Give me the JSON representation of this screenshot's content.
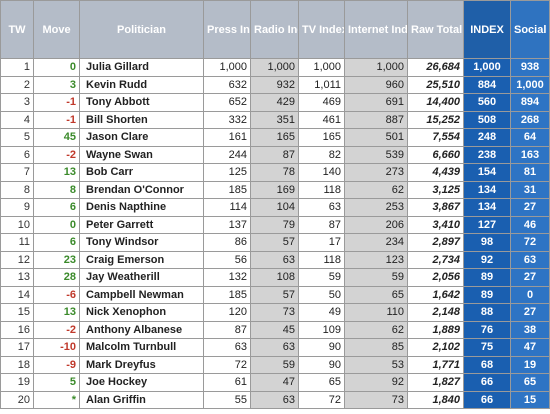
{
  "table": {
    "headers": {
      "tw": "TW",
      "move": "Move",
      "politician": "Politician",
      "press": "Press Index",
      "radio": "Radio Index",
      "tv": "TV Index",
      "internet": "Internet Index",
      "raw": "Raw Total",
      "index": "INDEX",
      "social": "Social Media Index"
    },
    "rows": [
      {
        "tw": "1",
        "move": "0",
        "politician": "Julia Gillard",
        "press": "1,000",
        "radio": "1,000",
        "tv": "1,000",
        "internet": "1,000",
        "raw": "26,684",
        "index": "1,000",
        "social": "938"
      },
      {
        "tw": "2",
        "move": "3",
        "politician": "Kevin Rudd",
        "press": "632",
        "radio": "932",
        "tv": "1,011",
        "internet": "960",
        "raw": "25,510",
        "index": "884",
        "social": "1,000"
      },
      {
        "tw": "3",
        "move": "-1",
        "politician": "Tony Abbott",
        "press": "652",
        "radio": "429",
        "tv": "469",
        "internet": "691",
        "raw": "14,400",
        "index": "560",
        "social": "894"
      },
      {
        "tw": "4",
        "move": "-1",
        "politician": "Bill Shorten",
        "press": "332",
        "radio": "351",
        "tv": "461",
        "internet": "887",
        "raw": "15,252",
        "index": "508",
        "social": "268"
      },
      {
        "tw": "5",
        "move": "45",
        "politician": "Jason Clare",
        "press": "161",
        "radio": "165",
        "tv": "165",
        "internet": "501",
        "raw": "7,554",
        "index": "248",
        "social": "64"
      },
      {
        "tw": "6",
        "move": "-2",
        "politician": "Wayne Swan",
        "press": "244",
        "radio": "87",
        "tv": "82",
        "internet": "539",
        "raw": "6,660",
        "index": "238",
        "social": "163"
      },
      {
        "tw": "7",
        "move": "13",
        "politician": "Bob Carr",
        "press": "125",
        "radio": "78",
        "tv": "140",
        "internet": "273",
        "raw": "4,439",
        "index": "154",
        "social": "81"
      },
      {
        "tw": "8",
        "move": "8",
        "politician": "Brendan O'Connor",
        "press": "185",
        "radio": "169",
        "tv": "118",
        "internet": "62",
        "raw": "3,125",
        "index": "134",
        "social": "31"
      },
      {
        "tw": "9",
        "move": "6",
        "politician": "Denis Napthine",
        "press": "114",
        "radio": "104",
        "tv": "63",
        "internet": "253",
        "raw": "3,867",
        "index": "134",
        "social": "27"
      },
      {
        "tw": "10",
        "move": "0",
        "politician": "Peter Garrett",
        "press": "137",
        "radio": "79",
        "tv": "87",
        "internet": "206",
        "raw": "3,410",
        "index": "127",
        "social": "46"
      },
      {
        "tw": "11",
        "move": "6",
        "politician": "Tony Windsor",
        "press": "86",
        "radio": "57",
        "tv": "17",
        "internet": "234",
        "raw": "2,897",
        "index": "98",
        "social": "72"
      },
      {
        "tw": "12",
        "move": "23",
        "politician": "Craig Emerson",
        "press": "56",
        "radio": "63",
        "tv": "118",
        "internet": "123",
        "raw": "2,734",
        "index": "92",
        "social": "63"
      },
      {
        "tw": "13",
        "move": "28",
        "politician": "Jay Weatherill",
        "press": "132",
        "radio": "108",
        "tv": "59",
        "internet": "59",
        "raw": "2,056",
        "index": "89",
        "social": "27"
      },
      {
        "tw": "14",
        "move": "-6",
        "politician": "Campbell Newman",
        "press": "185",
        "radio": "57",
        "tv": "50",
        "internet": "65",
        "raw": "1,642",
        "index": "89",
        "social": "0"
      },
      {
        "tw": "15",
        "move": "13",
        "politician": "Nick Xenophon",
        "press": "120",
        "radio": "73",
        "tv": "49",
        "internet": "110",
        "raw": "2,148",
        "index": "88",
        "social": "27"
      },
      {
        "tw": "16",
        "move": "-2",
        "politician": "Anthony Albanese",
        "press": "87",
        "radio": "45",
        "tv": "109",
        "internet": "62",
        "raw": "1,889",
        "index": "76",
        "social": "38"
      },
      {
        "tw": "17",
        "move": "-10",
        "politician": "Malcolm Turnbull",
        "press": "63",
        "radio": "63",
        "tv": "90",
        "internet": "85",
        "raw": "2,102",
        "index": "75",
        "social": "47"
      },
      {
        "tw": "18",
        "move": "-9",
        "politician": "Mark Dreyfus",
        "press": "72",
        "radio": "59",
        "tv": "90",
        "internet": "53",
        "raw": "1,771",
        "index": "68",
        "social": "19"
      },
      {
        "tw": "19",
        "move": "5",
        "politician": "Joe Hockey",
        "press": "61",
        "radio": "47",
        "tv": "65",
        "internet": "92",
        "raw": "1,827",
        "index": "66",
        "social": "65"
      },
      {
        "tw": "20",
        "move": "*",
        "politician": "Alan Griffin",
        "press": "55",
        "radio": "63",
        "tv": "72",
        "internet": "73",
        "raw": "1,840",
        "index": "66",
        "social": "15"
      }
    ]
  },
  "colors": {
    "header_bg": "#b4bcc8",
    "index_bg": "#1a5fb0",
    "social_bg": "#2e74c4",
    "gray_cell": "#d3d3d3",
    "move_positive": "#3a8a2a",
    "move_negative": "#c0392b"
  }
}
